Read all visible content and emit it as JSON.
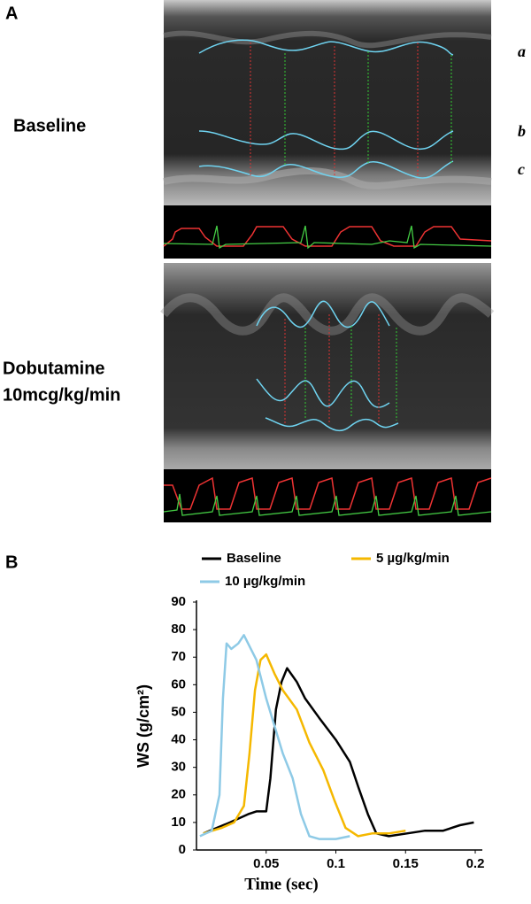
{
  "panel_a": {
    "letter": "A",
    "baseline_label": "Baseline",
    "dobutamine_label": [
      "Dobutamine",
      "10mcg/kg/min"
    ],
    "trace_labels": [
      "a",
      "b",
      "c"
    ]
  },
  "chart_data": {
    "type": "line",
    "panel": "B",
    "x_label": "Time (sec)",
    "y_label": "WS (g/cm²)",
    "xlim": [
      0,
      0.2
    ],
    "xticks": [
      0.05,
      0.1,
      0.15,
      0.2
    ],
    "ylim": [
      0,
      90
    ],
    "yticks": [
      0,
      10,
      20,
      30,
      40,
      50,
      60,
      70,
      80,
      90
    ],
    "series": [
      {
        "name": "Baseline",
        "color": "#000000",
        "x": [
          0.005,
          0.024,
          0.037,
          0.043,
          0.05,
          0.053,
          0.057,
          0.061,
          0.065,
          0.072,
          0.078,
          0.088,
          0.1,
          0.11,
          0.116,
          0.123,
          0.129,
          0.138,
          0.151,
          0.164,
          0.177,
          0.189,
          0.199
        ],
        "values": [
          6,
          10,
          13,
          14,
          14,
          26,
          51,
          61,
          66,
          61,
          55,
          48,
          40,
          32,
          23,
          13,
          6,
          5,
          6,
          7,
          7,
          9,
          10
        ]
      },
      {
        "name": "5 µg/kg/min",
        "color": "#f5b800",
        "x": [
          0.005,
          0.018,
          0.027,
          0.034,
          0.038,
          0.042,
          0.046,
          0.05,
          0.056,
          0.062,
          0.072,
          0.081,
          0.091,
          0.099,
          0.107,
          0.116,
          0.126,
          0.138,
          0.15
        ],
        "values": [
          6,
          8,
          10,
          16,
          35,
          58,
          69,
          71,
          64,
          58,
          51,
          39,
          29,
          18,
          8,
          5,
          6,
          6,
          7
        ]
      },
      {
        "name": "10 µg/kg/min",
        "color": "#8ecae6",
        "x": [
          0.0025,
          0.011,
          0.0165,
          0.019,
          0.0216,
          0.025,
          0.03,
          0.034,
          0.038,
          0.043,
          0.05,
          0.056,
          0.062,
          0.069,
          0.075,
          0.081,
          0.088,
          0.1,
          0.11
        ],
        "values": [
          5,
          7,
          20,
          55,
          75,
          73,
          75,
          78,
          74,
          69,
          55,
          45,
          35,
          26,
          13,
          5,
          4,
          4,
          5
        ]
      }
    ]
  }
}
